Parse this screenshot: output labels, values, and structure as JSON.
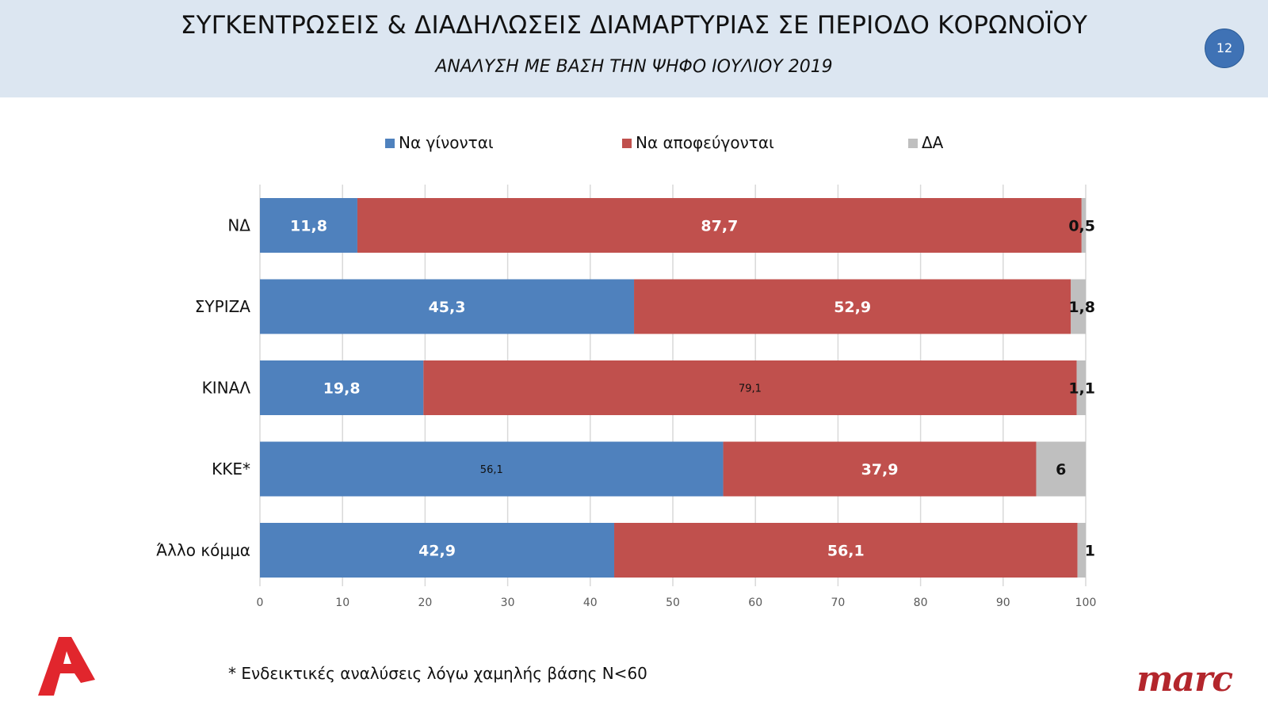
{
  "header": {
    "title": "ΣΥΓΚΕΝΤΡΩΣΕΙΣ & ΔΙΑΔΗΛΩΣΕΙΣ ΔΙΑΜΑΡΤΥΡΙΑΣ ΣΕ ΠΕΡΙΟΔΟ ΚΟΡΩΝΟΪΟΥ",
    "subtitle": "ΑΝΑΛΥΣΗ ΜΕ ΒΑΣΗ ΤΗΝ ΨΗΦΟ ΙΟΥΛΙΟΥ 2019",
    "page_number": "12"
  },
  "footnote": "* Ενδεικτικές αναλύσεις λόγω χαμηλής βάσης Ν<60",
  "logos": {
    "left": "Alpha",
    "right": "marc"
  },
  "colors": {
    "series1": "#4f81bd",
    "series2": "#c0504d",
    "series3": "#bfbfbf",
    "header_bg": "#dce6f1"
  },
  "chart_data": {
    "type": "bar",
    "orientation": "horizontal",
    "stacked": true,
    "categories": [
      "ΝΔ",
      "ΣΥΡΙΖΑ",
      "ΚΙΝΑΛ",
      "ΚΚΕ*",
      "Άλλο κόμμα"
    ],
    "series": [
      {
        "name": "Να γίνονται",
        "color": "#4f81bd",
        "values": [
          11.8,
          45.3,
          19.8,
          56.1,
          42.9
        ],
        "labels": [
          "11,8",
          "45,3",
          "19,8",
          "56,1",
          "42,9"
        ]
      },
      {
        "name": "Να αποφεύγονται",
        "color": "#c0504d",
        "values": [
          87.7,
          52.9,
          79.1,
          37.9,
          56.1
        ],
        "labels": [
          "87,7",
          "52,9",
          "79,1",
          "37,9",
          "56,1"
        ]
      },
      {
        "name": "ΔΑ",
        "color": "#bfbfbf",
        "values": [
          0.5,
          1.8,
          1.1,
          6,
          1
        ],
        "labels": [
          "0,5",
          "1,8",
          "1,1",
          "6",
          "1"
        ]
      }
    ],
    "xlim": [
      0,
      100
    ],
    "xticks": [
      0,
      10,
      20,
      30,
      40,
      50,
      60,
      70,
      80,
      90,
      100
    ],
    "grid": true,
    "legend_position": "top"
  }
}
